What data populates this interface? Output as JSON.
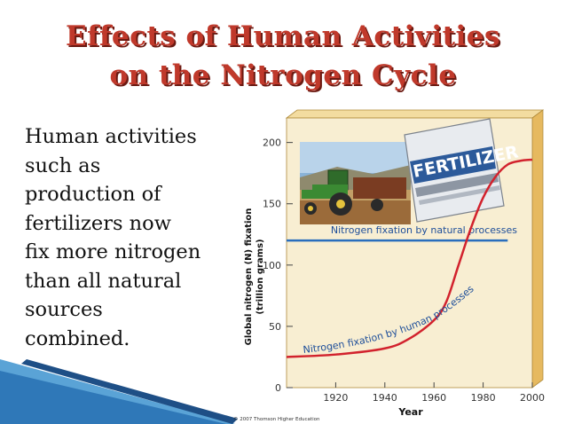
{
  "slide": {
    "title_line1": "Effects of Human Activities",
    "title_line2": "on the Nitrogen Cycle",
    "body_lines": [
      "Human activities",
      "such as",
      "production of",
      "fertilizers now",
      "fix more nitrogen",
      "than all natural",
      "sources",
      "combined."
    ]
  },
  "bag_label": "FERTILIZER",
  "credit": "© 2007 Thomson Higher Education",
  "colors": {
    "title": "#c0392b",
    "natural_line": "#2a6ebd",
    "human_line": "#d2222d",
    "panel": "#f7ecc9",
    "panel_side": "#e9c97a"
  },
  "chart_data": {
    "type": "line",
    "title": "",
    "xlabel": "Year",
    "ylabel": "Global nitrogen (N) fixation\n(trillion grams)",
    "xlim": [
      1900,
      2000
    ],
    "ylim": [
      0,
      220
    ],
    "x_ticks": [
      1920,
      1940,
      1960,
      1980,
      2000
    ],
    "y_ticks": [
      0,
      50,
      100,
      150,
      200
    ],
    "series": [
      {
        "name": "Nitrogen fixation by natural processes",
        "x": [
          1900,
          1990
        ],
        "y": [
          120,
          120
        ]
      },
      {
        "name": "Nitrogen fixation by human processes",
        "x": [
          1900,
          1920,
          1940,
          1950,
          1960,
          1965,
          1970,
          1975,
          1980,
          1985,
          1990,
          1995,
          2000
        ],
        "y": [
          25,
          27,
          32,
          40,
          55,
          70,
          100,
          130,
          155,
          172,
          182,
          185,
          186
        ]
      }
    ]
  }
}
